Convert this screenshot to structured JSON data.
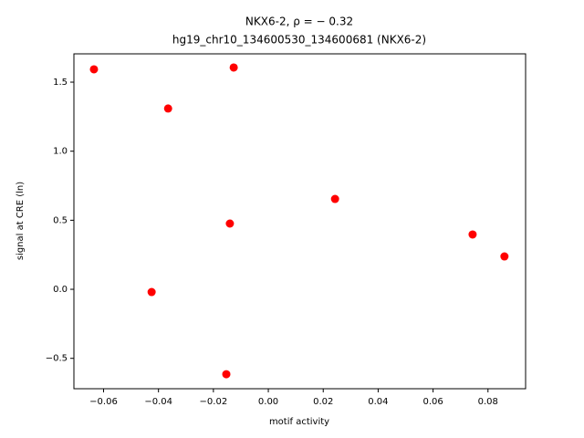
{
  "chart_data": {
    "type": "scatter",
    "title": "NKX6-2, ρ = − 0.32",
    "subtitle": "hg19_chr10_134600530_134600681 (NKX6-2)",
    "x_label": "motif activity",
    "y_label": "signal at CRE (ln)",
    "color": "#ff0000",
    "x": [
      -0.0635,
      -0.0365,
      -0.0126,
      0.0243,
      -0.014,
      0.0744,
      0.086,
      -0.0425,
      -0.0153
    ],
    "values": [
      1.593,
      1.309,
      1.606,
      0.654,
      0.476,
      0.397,
      0.238,
      -0.02,
      -0.615
    ],
    "xlim": [
      -0.0708,
      0.0937
    ],
    "ylim": [
      -0.72,
      1.705
    ],
    "xticks": [
      {
        "value": -0.06,
        "label": "−0.06"
      },
      {
        "value": -0.04,
        "label": "−0.04"
      },
      {
        "value": -0.02,
        "label": "−0.02"
      },
      {
        "value": 0,
        "label": "0.00"
      },
      0.02,
      0.04,
      0.06,
      0.08
    ],
    "yticks": [
      {
        "value": -0.5,
        "label": "−0.5"
      },
      {
        "value": 0,
        "label": "0.0"
      },
      0.5,
      {
        "value": 1,
        "label": "1.0"
      },
      1.5
    ]
  }
}
